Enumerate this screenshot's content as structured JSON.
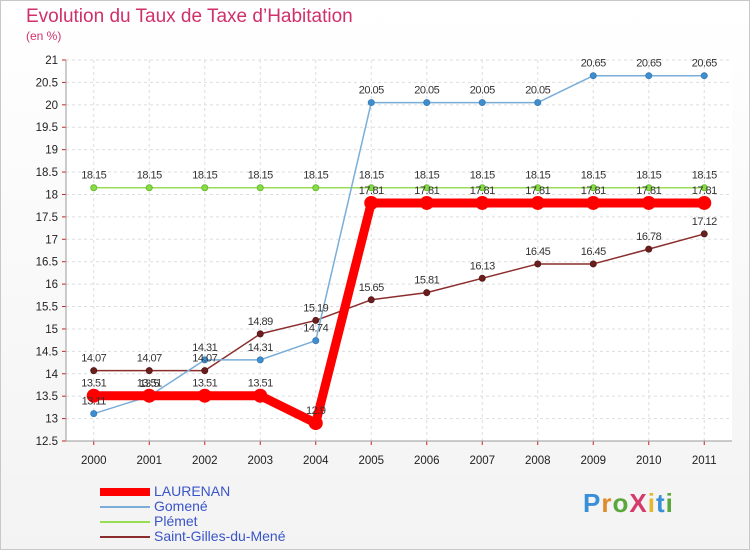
{
  "title": "Evolution du Taux de Taxe d’Habitation",
  "subtitle": "(en %)",
  "logo": {
    "text": "ProXiti",
    "letter_colors": [
      "#3a8fd8",
      "#e08a2c",
      "#5aa83c",
      "#d63a6a",
      "#e0b832",
      "#3a8fd8",
      "#5aa83c"
    ]
  },
  "chart_data": {
    "type": "line",
    "title": "Evolution du Taux de Taxe d’Habitation",
    "subtitle": "(en %)",
    "x": [
      "2000",
      "2001",
      "2002",
      "2003",
      "2004",
      "2005",
      "2006",
      "2007",
      "2008",
      "2009",
      "2010",
      "2011"
    ],
    "y_ticks": [
      "12.5",
      "13",
      "13.5",
      "14",
      "14.5",
      "15",
      "15.5",
      "16",
      "16.5",
      "17",
      "17.5",
      "18",
      "18.5",
      "19",
      "19.5",
      "20",
      "20.5",
      "21"
    ],
    "ylim": [
      12.5,
      21
    ],
    "grid": true,
    "legend_position": "bottom-left",
    "series": [
      {
        "name": "LAURENAN",
        "color": "#ff0000",
        "values": [
          13.51,
          13.51,
          13.51,
          13.51,
          12.9,
          17.81,
          17.81,
          17.81,
          17.81,
          17.81,
          17.81,
          17.81
        ],
        "labels": [
          "13.51",
          "13.51",
          "13.51",
          "13.51",
          "12.9",
          "17.81",
          "17.81",
          "17.81",
          "17.81",
          "17.81",
          "17.81",
          "17.81"
        ]
      },
      {
        "name": "Gomené",
        "color": "#7aaed8",
        "values": [
          13.11,
          13.5,
          14.31,
          14.31,
          14.74,
          20.05,
          20.05,
          20.05,
          20.05,
          20.65,
          20.65,
          20.65
        ],
        "labels": [
          "13.11",
          "13.5",
          "14.31",
          "14.31",
          "14.74",
          "20.05",
          "20.05",
          "20.05",
          "20.05",
          "20.65",
          "20.65",
          "20.65"
        ]
      },
      {
        "name": "Plémet",
        "color": "#99dd55",
        "values": [
          18.15,
          18.15,
          18.15,
          18.15,
          18.15,
          18.15,
          18.15,
          18.15,
          18.15,
          18.15,
          18.15,
          18.15
        ],
        "labels": [
          "18.15",
          "18.15",
          "18.15",
          "18.15",
          "18.15",
          "18.15",
          "18.15",
          "18.15",
          "18.15",
          "18.15",
          "18.15",
          "18.15"
        ]
      },
      {
        "name": "Saint-Gilles-du-Mené",
        "color": "#8b2d2d",
        "values": [
          14.07,
          14.07,
          14.07,
          14.89,
          15.19,
          15.65,
          15.81,
          16.13,
          16.45,
          16.45,
          16.78,
          17.12
        ],
        "labels": [
          "14.07",
          "14.07",
          "14.07",
          "14.89",
          "15.19",
          "15.65",
          "15.81",
          "16.13",
          "16.45",
          "16.45",
          "16.78",
          "17.12"
        ]
      }
    ]
  }
}
